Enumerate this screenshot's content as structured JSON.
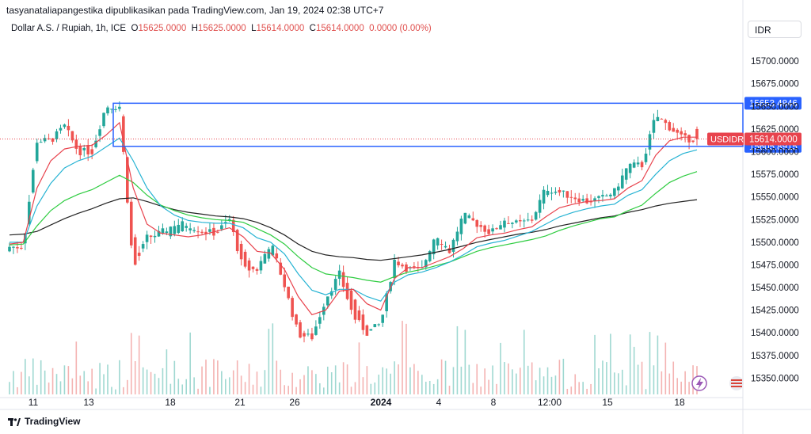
{
  "header": {
    "attribution": "tasyanataliapangestika dipublikasikan pada TradingView.com, Jan 19, 2024 02:38 UTC+7",
    "symbol": "Dollar A.S. / Rupiah, 1h, ICE",
    "o_label": "O",
    "o_value": "15625.0000",
    "h_label": "H",
    "h_value": "15625.0000",
    "l_label": "L",
    "l_value": "15614.0000",
    "c_label": "C",
    "c_value": "15614.0000",
    "change": "0.0000 (0.00%)"
  },
  "currency_button": "IDR",
  "footer": {
    "brand": "TradingView"
  },
  "colors": {
    "up": "#22a69a",
    "down": "#ef5350",
    "ema_fast": "#e8434d",
    "ema_mid": "#26b3d3",
    "ema_slow": "#2ecc40",
    "ema_long": "#222222",
    "level": "#2962ff"
  },
  "chart_data": {
    "type": "candlestick",
    "ylim": [
      15332,
      15722
    ],
    "y_ticks": [
      15350,
      15375,
      15400,
      15425,
      15450,
      15475,
      15500,
      15525,
      15550,
      15575,
      15600,
      15625,
      15650,
      15675,
      15700
    ],
    "y_tick_labels": [
      "15350.0000",
      "15375.0000",
      "15400.0000",
      "15425.0000",
      "15450.0000",
      "15475.0000",
      "15500.0000",
      "15525.0000",
      "15550.0000",
      "15575.0000",
      "15600.0000",
      "15625.0000",
      "15650.0000",
      "15675.0000",
      "15700.0000"
    ],
    "x_ticks": [
      {
        "label": "11",
        "bold": false
      },
      {
        "label": "13",
        "bold": false
      },
      {
        "label": "18",
        "bold": false
      },
      {
        "label": "21",
        "bold": false
      },
      {
        "label": "26",
        "bold": false
      },
      {
        "label": "2024",
        "bold": true
      },
      {
        "label": "4",
        "bold": false
      },
      {
        "label": "8",
        "bold": false
      },
      {
        "label": "12:00",
        "bold": false
      },
      {
        "label": "15",
        "bold": false
      },
      {
        "label": "18",
        "bold": false
      }
    ],
    "levels": [
      {
        "value": 15653.4846,
        "label": "15653.4846"
      },
      {
        "value": 15605.8915,
        "label": "15605.8915"
      }
    ],
    "last_price": {
      "symbol": "USDIDR",
      "value": 15614.0,
      "label": "15614.0000"
    },
    "key_points": [
      [
        15490,
        15495
      ],
      [
        15496,
        15495
      ],
      [
        15612,
        15612
      ],
      [
        15614,
        15612
      ],
      [
        15630,
        15628
      ],
      [
        15613,
        15600
      ],
      [
        15616,
        15600
      ],
      [
        15640,
        15650
      ],
      [
        15648,
        15650
      ],
      [
        15530,
        15470
      ],
      [
        15505,
        15505
      ],
      [
        15505,
        15510
      ],
      [
        15490,
        15520
      ],
      [
        15500,
        15520
      ],
      [
        15512,
        15512
      ],
      [
        15520,
        15510
      ],
      [
        15526,
        15525
      ],
      [
        15515,
        15470
      ],
      [
        15470,
        15470
      ],
      [
        15470,
        15500
      ],
      [
        15465,
        15452
      ],
      [
        15420,
        15398
      ],
      [
        15400,
        15395
      ],
      [
        15430,
        15438
      ],
      [
        15460,
        15465
      ],
      [
        15470,
        15418
      ],
      [
        15420,
        15400
      ],
      [
        15405,
        15410
      ],
      [
        15470,
        15480
      ],
      [
        15482,
        15470
      ],
      [
        15470,
        15470
      ],
      [
        15480,
        15510
      ],
      [
        15488,
        15490
      ],
      [
        15505,
        15530
      ],
      [
        15525,
        15520
      ],
      [
        15520,
        15510
      ],
      [
        15510,
        15525
      ],
      [
        15525,
        15520
      ],
      [
        15525,
        15525
      ],
      [
        15535,
        15560
      ],
      [
        15562,
        15555
      ],
      [
        15550,
        15550
      ],
      [
        15550,
        15545
      ],
      [
        15550,
        15548
      ],
      [
        15548,
        15556
      ],
      [
        15560,
        15585
      ],
      [
        15590,
        15585
      ],
      [
        15630,
        15640
      ],
      [
        15635,
        15627
      ],
      [
        15625,
        15614
      ],
      [
        15614,
        15614
      ]
    ],
    "ema_fast": [
      15498,
      15500,
      15560,
      15590,
      15603,
      15606,
      15607,
      15618,
      15632,
      15560,
      15520,
      15510,
      15508,
      15506,
      15508,
      15512,
      15516,
      15506,
      15490,
      15488,
      15470,
      15440,
      15420,
      15425,
      15446,
      15448,
      15432,
      15425,
      15460,
      15472,
      15472,
      15478,
      15484,
      15493,
      15505,
      15508,
      15510,
      15514,
      15517,
      15528,
      15538,
      15542,
      15545,
      15546,
      15548,
      15560,
      15568,
      15596,
      15612,
      15616,
      15616
    ],
    "ema_mid": [
      15500,
      15500,
      15540,
      15565,
      15582,
      15590,
      15595,
      15605,
      15615,
      15590,
      15560,
      15540,
      15530,
      15524,
      15522,
      15521,
      15521,
      15516,
      15505,
      15500,
      15487,
      15465,
      15447,
      15442,
      15448,
      15448,
      15440,
      15435,
      15456,
      15464,
      15467,
      15472,
      15478,
      15486,
      15495,
      15499,
      15502,
      15507,
      15512,
      15520,
      15528,
      15533,
      15537,
      15540,
      15542,
      15552,
      15558,
      15575,
      15590,
      15598,
      15602
    ],
    "ema_slow": [
      15497,
      15498,
      15518,
      15535,
      15546,
      15553,
      15558,
      15566,
      15574,
      15566,
      15552,
      15541,
      15535,
      15530,
      15527,
      15525,
      15524,
      15522,
      15515,
      15508,
      15498,
      15484,
      15472,
      15465,
      15463,
      15461,
      15458,
      15456,
      15462,
      15467,
      15470,
      15474,
      15478,
      15484,
      15490,
      15494,
      15497,
      15500,
      15503,
      15507,
      15513,
      15518,
      15522,
      15526,
      15528,
      15535,
      15541,
      15554,
      15566,
      15573,
      15578
    ],
    "ema_long": [
      15508,
      15509,
      15512,
      15519,
      15526,
      15532,
      15537,
      15543,
      15548,
      15549,
      15545,
      15540,
      15536,
      15533,
      15531,
      15529,
      15528,
      15526,
      15522,
      15516,
      15508,
      15498,
      15490,
      15486,
      15484,
      15483,
      15481,
      15480,
      15482,
      15484,
      15486,
      15489,
      15492,
      15496,
      15500,
      15503,
      15506,
      15509,
      15511,
      15514,
      15518,
      15521,
      15524,
      15527,
      15529,
      15533,
      15536,
      15540,
      15543,
      15545,
      15547
    ]
  }
}
